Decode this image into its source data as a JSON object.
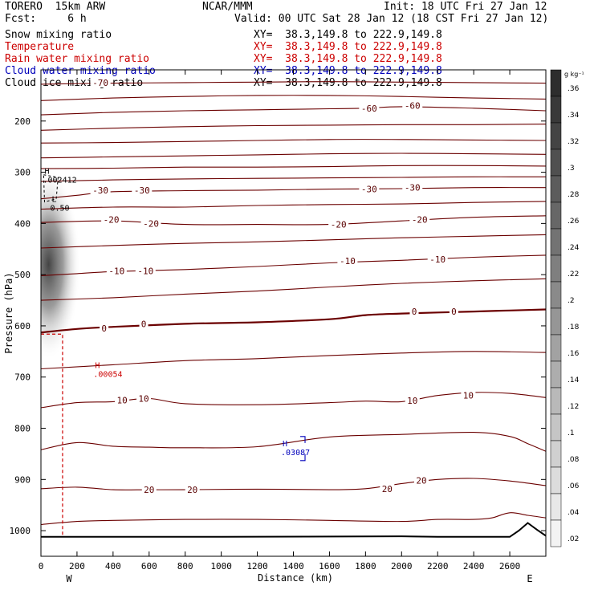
{
  "header": {
    "model": "TORERO  15km ARW",
    "org": "NCAR/MMM",
    "init": "Init: 18 UTC Fri 27 Jan 12",
    "fcst": "Fcst:     6 h",
    "valid": "Valid: 00 UTC Sat 28 Jan 12 (18 CST Fri 27 Jan 12)"
  },
  "fields": [
    {
      "label": "Snow mixing ratio",
      "xy": "XY=  38.3,149.8 to 222.9,149.8",
      "color": "#000000"
    },
    {
      "label": "Temperature",
      "xy": "XY=  38.3,149.8 to 222.9,149.8",
      "color": "#cc0000"
    },
    {
      "label": "Rain water mixing ratio",
      "xy": "XY=  38.3,149.8 to 222.9,149.8",
      "color": "#cc0000"
    },
    {
      "label": "Cloud water mixing ratio",
      "xy": "XY=  38.3,149.8 to 222.9,149.8",
      "color": "#0000bb"
    },
    {
      "label": "Cloud ice mixing ratio",
      "xy": "XY=  38.3,149.8 to 222.9,149.8",
      "color": "#000000"
    }
  ],
  "chart_data": {
    "type": "contour-cross-section",
    "xlabel": "Distance (km)",
    "ylabel": "Pressure (hPa)",
    "xlim": [
      0,
      2800
    ],
    "ylim": [
      1050,
      100
    ],
    "x_ticks": [
      0,
      200,
      400,
      600,
      800,
      1000,
      1200,
      1400,
      1600,
      1800,
      2000,
      2200,
      2400,
      2600
    ],
    "y_ticks": [
      200,
      300,
      400,
      500,
      600,
      700,
      800,
      900,
      1000
    ],
    "west_label": "W",
    "east_label": "E",
    "colorbar": {
      "unit_label": "g kg⁻¹",
      "ticks": [
        ".36",
        ".34",
        ".32",
        ".3",
        ".28",
        ".26",
        ".24",
        ".22",
        ".2",
        ".18",
        ".16",
        ".14",
        ".12",
        ".1",
        ".08",
        ".06",
        ".04",
        ".02"
      ]
    },
    "temperature_contour_labels": [
      {
        "text": "-70",
        "x": 330,
        "p": 125
      },
      {
        "text": "-60",
        "x": 1820,
        "p": 175
      },
      {
        "text": "-60",
        "x": 2060,
        "p": 170
      },
      {
        "text": "-30",
        "x": 330,
        "p": 335
      },
      {
        "text": "-30",
        "x": 560,
        "p": 335
      },
      {
        "text": "-30",
        "x": 1820,
        "p": 333
      },
      {
        "text": "-30",
        "x": 2060,
        "p": 330
      },
      {
        "text": "-20",
        "x": 390,
        "p": 392
      },
      {
        "text": "-20",
        "x": 610,
        "p": 400
      },
      {
        "text": "-20",
        "x": 1650,
        "p": 402
      },
      {
        "text": "-20",
        "x": 2100,
        "p": 392
      },
      {
        "text": "-10",
        "x": 420,
        "p": 493
      },
      {
        "text": "-10",
        "x": 580,
        "p": 493
      },
      {
        "text": "-10",
        "x": 1700,
        "p": 473
      },
      {
        "text": "-10",
        "x": 2200,
        "p": 470
      },
      {
        "text": "0",
        "x": 350,
        "p": 605
      },
      {
        "text": "0",
        "x": 570,
        "p": 596
      },
      {
        "text": "0",
        "x": 2070,
        "p": 572
      },
      {
        "text": "0",
        "x": 2290,
        "p": 572
      },
      {
        "text": "10",
        "x": 450,
        "p": 745
      },
      {
        "text": "10",
        "x": 570,
        "p": 742
      },
      {
        "text": "10",
        "x": 2060,
        "p": 746
      },
      {
        "text": "10",
        "x": 2370,
        "p": 736
      },
      {
        "text": "20",
        "x": 600,
        "p": 920
      },
      {
        "text": "20",
        "x": 840,
        "p": 920
      },
      {
        "text": "20",
        "x": 1920,
        "p": 918
      },
      {
        "text": "20",
        "x": 2110,
        "p": 902
      }
    ],
    "temperature_contours_hPa": [
      {
        "temp": "-70",
        "x": [
          0,
          400,
          800,
          1200,
          1600,
          2000,
          2400,
          2800
        ],
        "p": [
          128,
          126,
          125,
          124,
          123,
          124,
          125,
          126
        ],
        "heavy": false
      },
      {
        "temp": "-65",
        "x": [
          0,
          400,
          800,
          1200,
          1600,
          2000,
          2400,
          2800
        ],
        "p": [
          160,
          155,
          152,
          150,
          150,
          152,
          155,
          157
        ],
        "heavy": false
      },
      {
        "temp": "-60",
        "x": [
          0,
          400,
          800,
          1200,
          1600,
          1800,
          2000,
          2400,
          2800
        ],
        "p": [
          188,
          183,
          180,
          178,
          176,
          175,
          172,
          175,
          180
        ],
        "heavy": false
      },
      {
        "temp": "-55",
        "x": [
          0,
          400,
          800,
          1200,
          1600,
          2000,
          2400,
          2800
        ],
        "p": [
          218,
          214,
          211,
          209,
          208,
          207,
          207,
          206
        ],
        "heavy": false
      },
      {
        "temp": "-50",
        "x": [
          0,
          400,
          800,
          1200,
          1600,
          2000,
          2400,
          2800
        ],
        "p": [
          243,
          242,
          240,
          238,
          236,
          236,
          237,
          238
        ],
        "heavy": false
      },
      {
        "temp": "-45",
        "x": [
          0,
          400,
          800,
          1200,
          1600,
          2000,
          2400,
          2800
        ],
        "p": [
          272,
          270,
          268,
          266,
          264,
          263,
          264,
          265
        ],
        "heavy": false
      },
      {
        "temp": "-40",
        "x": [
          0,
          400,
          800,
          1200,
          1600,
          2000,
          2400,
          2800
        ],
        "p": [
          293,
          292,
          290,
          290,
          289,
          287,
          287,
          288
        ],
        "heavy": false
      },
      {
        "temp": "-35",
        "x": [
          0,
          400,
          800,
          1200,
          1600,
          2000,
          2400,
          2800
        ],
        "p": [
          318,
          315,
          313,
          312,
          311,
          310,
          309,
          309
        ],
        "heavy": false
      },
      {
        "temp": "-30",
        "x": [
          0,
          200,
          400,
          800,
          1200,
          1600,
          2000,
          2400,
          2800
        ],
        "p": [
          352,
          345,
          338,
          336,
          335,
          333,
          332,
          330,
          330
        ],
        "heavy": false
      },
      {
        "temp": "-25",
        "x": [
          0,
          400,
          800,
          1200,
          1600,
          2000,
          2400,
          2800
        ],
        "p": [
          372,
          368,
          368,
          365,
          363,
          362,
          359,
          357
        ],
        "heavy": false
      },
      {
        "temp": "-20",
        "x": [
          0,
          400,
          800,
          1200,
          1600,
          2000,
          2400,
          2800
        ],
        "p": [
          398,
          395,
          402,
          402,
          402,
          395,
          388,
          385
        ],
        "heavy": false
      },
      {
        "temp": "-15",
        "x": [
          0,
          400,
          800,
          1200,
          1600,
          2000,
          2400,
          2800
        ],
        "p": [
          448,
          443,
          439,
          436,
          432,
          428,
          425,
          422
        ],
        "heavy": false
      },
      {
        "temp": "-10",
        "x": [
          0,
          200,
          400,
          800,
          1200,
          1600,
          2000,
          2400,
          2800
        ],
        "p": [
          502,
          498,
          494,
          490,
          484,
          477,
          472,
          466,
          462
        ],
        "heavy": false
      },
      {
        "temp": "-5",
        "x": [
          0,
          400,
          800,
          1200,
          1600,
          2000,
          2400,
          2800
        ],
        "p": [
          550,
          545,
          538,
          532,
          524,
          517,
          512,
          508
        ],
        "heavy": false
      },
      {
        "temp": "0",
        "x": [
          0,
          200,
          400,
          800,
          1200,
          1600,
          1800,
          2000,
          2400,
          2600,
          2800
        ],
        "p": [
          613,
          606,
          602,
          596,
          593,
          587,
          579,
          576,
          572,
          570,
          568
        ],
        "heavy": true
      },
      {
        "temp": "5",
        "x": [
          0,
          400,
          800,
          1200,
          1600,
          2000,
          2400,
          2800
        ],
        "p": [
          684,
          676,
          668,
          664,
          658,
          653,
          650,
          652
        ],
        "heavy": false
      },
      {
        "temp": "10",
        "x": [
          0,
          200,
          400,
          600,
          800,
          1200,
          1600,
          1800,
          2000,
          2200,
          2400,
          2600,
          2800
        ],
        "p": [
          760,
          750,
          748,
          742,
          752,
          754,
          750,
          747,
          748,
          736,
          730,
          732,
          740
        ],
        "heavy": false
      },
      {
        "temp": "15",
        "x": [
          0,
          200,
          400,
          600,
          800,
          1200,
          1600,
          2000,
          2400,
          2600,
          2700,
          2800
        ],
        "p": [
          842,
          828,
          835,
          837,
          838,
          836,
          817,
          812,
          808,
          816,
          830,
          845
        ],
        "heavy": false
      },
      {
        "temp": "20",
        "x": [
          0,
          200,
          400,
          600,
          800,
          1200,
          1600,
          1800,
          2000,
          2200,
          2400,
          2600,
          2800
        ],
        "p": [
          918,
          915,
          920,
          920,
          920,
          919,
          920,
          918,
          908,
          900,
          898,
          903,
          912
        ],
        "heavy": false
      },
      {
        "temp": "25",
        "x": [
          0,
          200,
          400,
          800,
          1200,
          1600,
          2000,
          2200,
          2400,
          2500,
          2600,
          2700,
          2800
        ],
        "p": [
          988,
          982,
          980,
          978,
          978,
          980,
          982,
          978,
          978,
          975,
          965,
          970,
          975
        ],
        "heavy": false
      }
    ],
    "terrain_hPa": {
      "x": [
        0,
        200,
        1000,
        2000,
        2200,
        2400,
        2600,
        2650,
        2700,
        2750,
        2800
      ],
      "p": [
        1012,
        1012,
        1012,
        1011,
        1012,
        1012,
        1012,
        1000,
        985,
        998,
        1010
      ]
    },
    "extrema": [
      {
        "text": "H",
        "value": ".002412",
        "color": "#000000",
        "x": 20,
        "p": 303
      },
      {
        "text": "L",
        "value": "0.50",
        "color": "#000000",
        "x": 60,
        "p": 358
      },
      {
        "text": "H",
        "value": ".00054",
        "color": "#cc0000",
        "x": 300,
        "p": 682
      },
      {
        "text": "H",
        "value": ".03087",
        "color": "#0000bb",
        "x": 1340,
        "p": 835
      }
    ],
    "snow_shading": {
      "x_center": 60,
      "p_top": 340,
      "p_bottom": 620,
      "max_value": 0.3
    }
  }
}
